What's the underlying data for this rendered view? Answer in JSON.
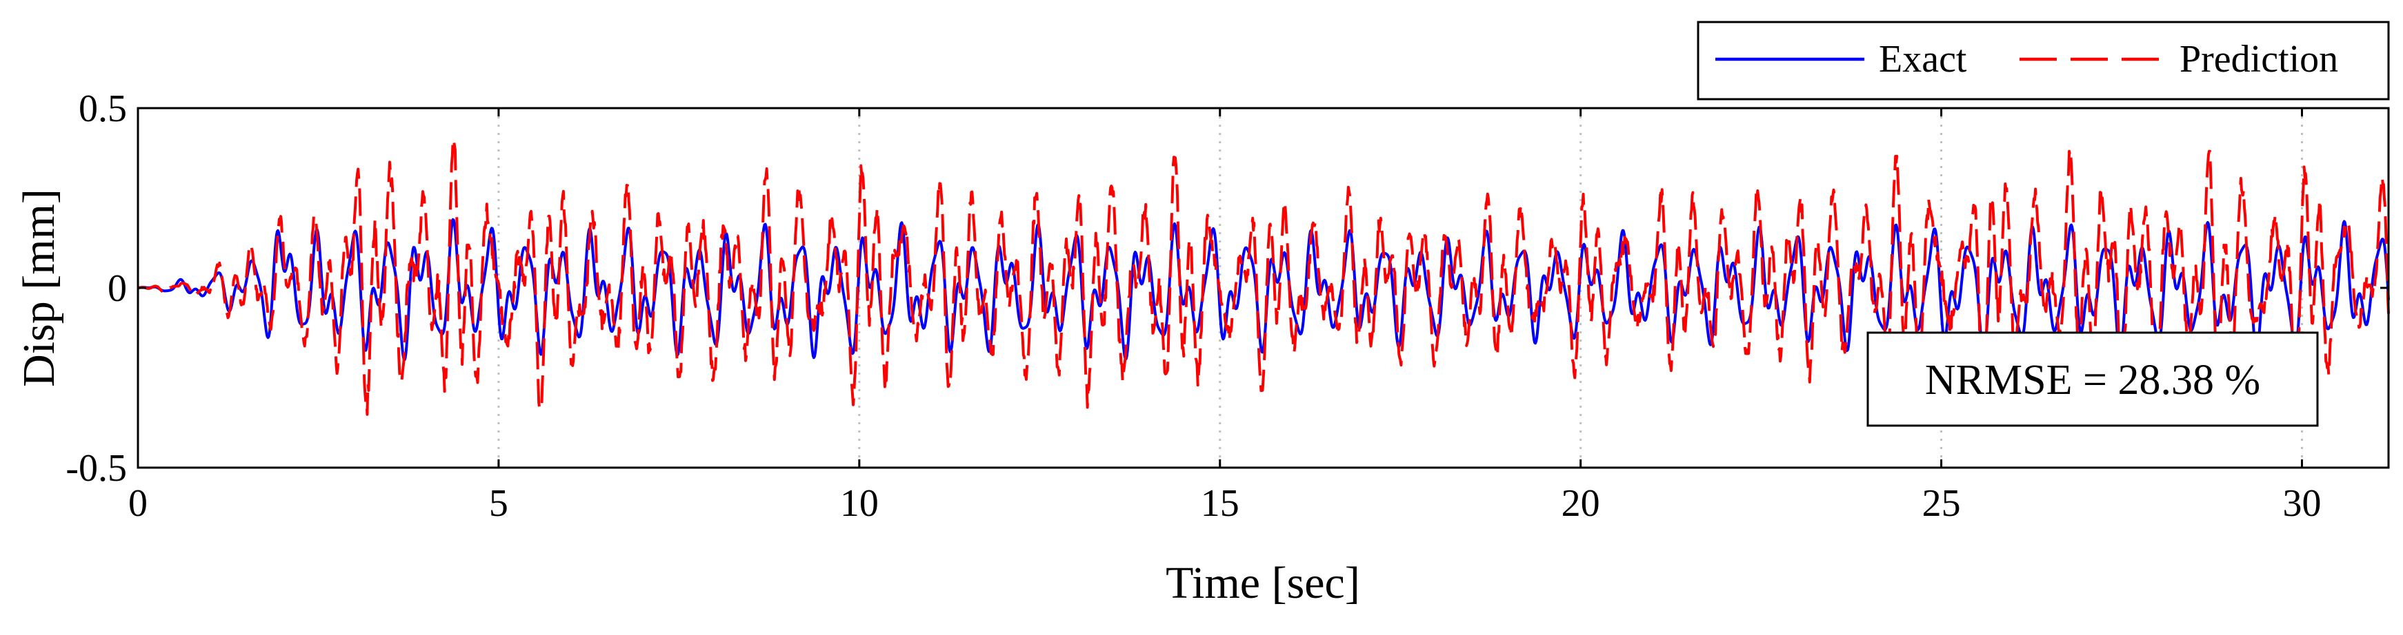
{
  "chart_data": {
    "type": "line",
    "title": "",
    "xlabel": "Time [sec]",
    "ylabel": "Disp [mm]",
    "xlim": [
      0,
      31.2
    ],
    "ylim": [
      -0.5,
      0.5
    ],
    "xticks": [
      0,
      5,
      10,
      15,
      20,
      25,
      30
    ],
    "xtick_labels": [
      "0",
      "5",
      "10",
      "15",
      "20",
      "25",
      "30"
    ],
    "yticks": [
      0.5,
      0,
      -0.5
    ],
    "ytick_labels": [
      "0.5",
      "0",
      "-0.5"
    ],
    "grid": "x-dotted",
    "legend_position": "top-right, outside plot",
    "annotation": "NRMSE = 28.38 %",
    "envelope_note": "values estimated from the plotted envelope (peak amplitude vs time)",
    "series": [
      {
        "name": "Exact",
        "color": "#0000ff",
        "style": "solid",
        "envelope": {
          "t": [
            0,
            0.5,
            1.0,
            1.5,
            2.0,
            2.3,
            2.7,
            3.0,
            4.0,
            5.0,
            7.0,
            10.0,
            12.0,
            14.0,
            15.0,
            17.0,
            20.0,
            25.0,
            30.0,
            31.2
          ],
          "upper": [
            0.0,
            0.02,
            0.05,
            0.1,
            0.26,
            0.16,
            0.2,
            0.21,
            0.22,
            0.2,
            0.19,
            0.2,
            0.19,
            0.2,
            0.2,
            0.18,
            0.17,
            0.2,
            0.2,
            0.2
          ],
          "lower": [
            0.0,
            -0.02,
            -0.05,
            -0.1,
            -0.2,
            -0.18,
            -0.22,
            -0.22,
            -0.22,
            -0.2,
            -0.2,
            -0.22,
            -0.2,
            -0.22,
            -0.2,
            -0.18,
            -0.17,
            -0.2,
            -0.2,
            -0.2
          ]
        }
      },
      {
        "name": "Prediction",
        "color": "#ff0000",
        "style": "dashed",
        "envelope": {
          "t": [
            0,
            0.5,
            1.0,
            1.5,
            2.0,
            2.3,
            2.7,
            3.0,
            4.0,
            5.0,
            7.0,
            10.0,
            12.0,
            14.0,
            15.0,
            17.0,
            20.0,
            25.0,
            30.0,
            31.2
          ],
          "upper": [
            0.0,
            0.02,
            0.06,
            0.13,
            0.28,
            0.2,
            0.3,
            0.43,
            0.45,
            0.35,
            0.3,
            0.38,
            0.3,
            0.4,
            0.3,
            0.28,
            0.27,
            0.38,
            0.38,
            0.35
          ],
          "lower": [
            0.0,
            -0.02,
            -0.06,
            -0.12,
            -0.22,
            -0.2,
            -0.3,
            -0.38,
            -0.4,
            -0.35,
            -0.3,
            -0.33,
            -0.3,
            -0.38,
            -0.3,
            -0.25,
            -0.25,
            -0.3,
            -0.32,
            -0.28
          ]
        }
      }
    ]
  }
}
